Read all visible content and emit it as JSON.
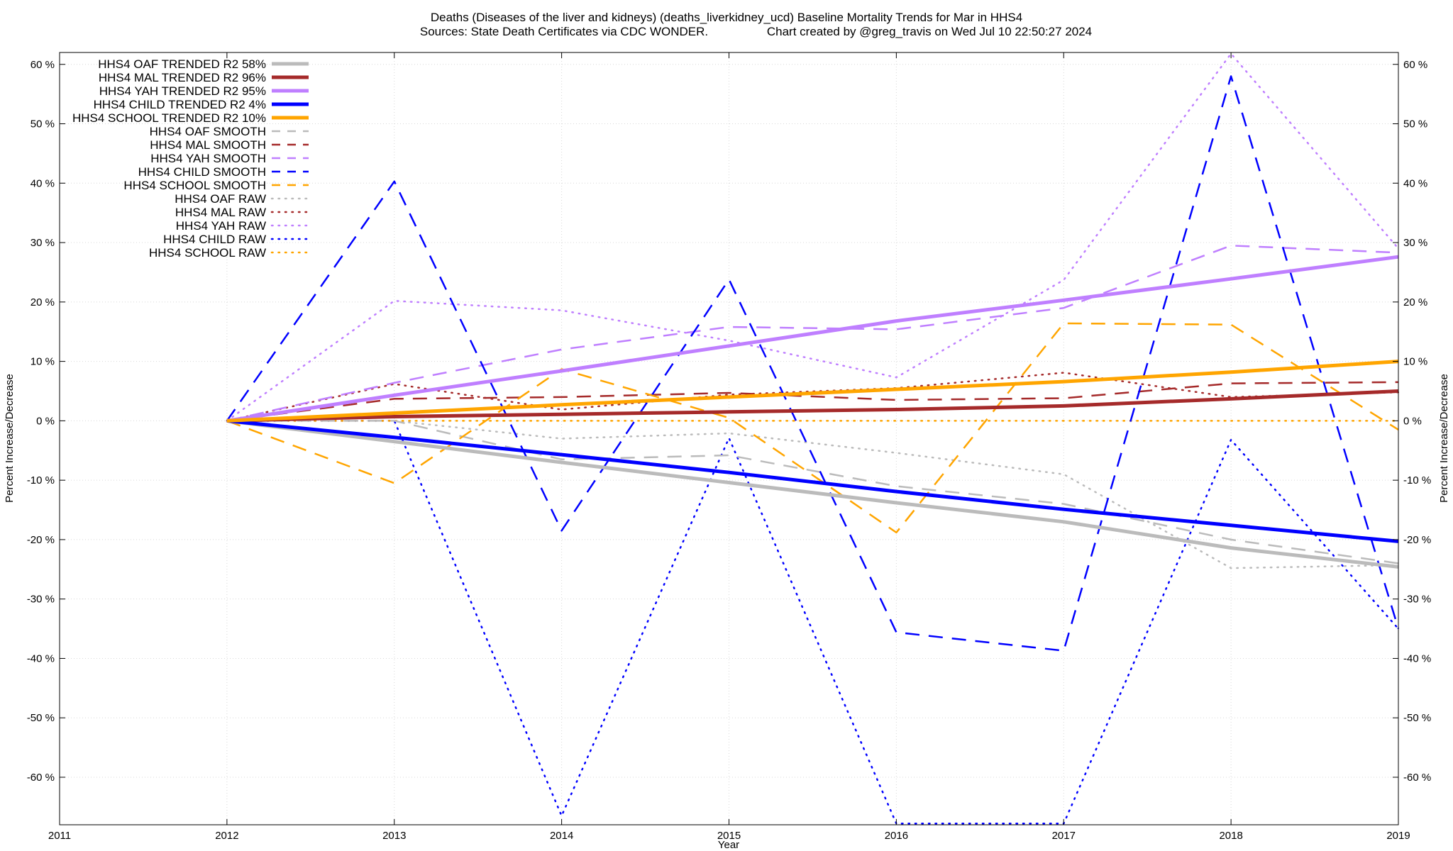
{
  "chart_data": {
    "type": "line",
    "title_line1": "Deaths (Diseases of the liver and kidneys) (deaths_liverkidney_ucd)  Baseline Mortality Trends for Mar in HHS4",
    "title_line2_left": "Sources: State Death Certificates via CDC WONDER.",
    "title_line2_right": "Chart created by @greg_travis on Wed Jul 10 22:50:27 2024",
    "xlabel": "Year",
    "ylabel_left": "Percent Increase/Decrease",
    "ylabel_right": "Percent Increase/Decrease",
    "xlim": [
      2011,
      2019
    ],
    "ylim": [
      -68,
      62
    ],
    "x_ticks": [
      2011,
      2012,
      2013,
      2014,
      2015,
      2016,
      2017,
      2018,
      2019
    ],
    "x_tick_labels": [
      "2011",
      "2012",
      "2013",
      "2014",
      "2015",
      "2016",
      "2017",
      "2018",
      "2019"
    ],
    "y_ticks": [
      60,
      50,
      40,
      30,
      20,
      10,
      0,
      -10,
      -20,
      -30,
      -40,
      -50,
      -60
    ],
    "y_tick_labels": [
      "60 %",
      "50 %",
      "40 %",
      "30 %",
      "20 %",
      "10 %",
      "0 %",
      "-10 %",
      "-20 %",
      "-30 %",
      "-40 %",
      "-50 %",
      "-60 %"
    ],
    "grid": true,
    "legend_position": "top-left",
    "colors": {
      "oaf": "#bbbbbb",
      "mal": "#a52a2a",
      "yah": "#bf7fff",
      "child": "#0000ff",
      "school": "#ffa500"
    },
    "series": [
      {
        "name": "HHS4 OAF TRENDED R2  58%",
        "style": "trended",
        "color_key": "oaf",
        "x": [
          2012,
          2013,
          2014,
          2015,
          2016,
          2017,
          2018,
          2019
        ],
        "values": [
          0,
          -3.5,
          -7,
          -10.4,
          -13.8,
          -17,
          -21.4,
          -24.6
        ]
      },
      {
        "name": "HHS4 MAL TRENDED R2  96%",
        "style": "trended",
        "color_key": "mal",
        "x": [
          2012,
          2013,
          2014,
          2015,
          2016,
          2017,
          2018,
          2019
        ],
        "values": [
          0,
          0.7,
          1.1,
          1.5,
          1.9,
          2.5,
          3.7,
          5
        ]
      },
      {
        "name": "HHS4 YAH TRENDED R2  95%",
        "style": "trended",
        "color_key": "yah",
        "x": [
          2012,
          2013,
          2014,
          2015,
          2016,
          2017,
          2018,
          2019
        ],
        "values": [
          0,
          4.3,
          8.4,
          12.6,
          16.8,
          20.3,
          23.9,
          27.6
        ]
      },
      {
        "name": "HHS4 CHILD TRENDED R2   4%",
        "style": "trended",
        "color_key": "child",
        "x": [
          2012,
          2013,
          2014,
          2015,
          2016,
          2017,
          2018,
          2019
        ],
        "values": [
          0,
          -2.8,
          -5.7,
          -8.7,
          -11.9,
          -14.9,
          -17.6,
          -20.3
        ]
      },
      {
        "name": "HHS4 SCHOOL TRENDED R2  10%",
        "style": "trended",
        "color_key": "school",
        "x": [
          2012,
          2013,
          2014,
          2015,
          2016,
          2017,
          2018,
          2019
        ],
        "values": [
          0,
          1.3,
          2.7,
          4,
          5.3,
          6.6,
          8.2,
          10
        ]
      },
      {
        "name": "HHS4 OAF SMOOTH",
        "style": "smooth",
        "color_key": "oaf",
        "x": [
          2012,
          2013,
          2014,
          2015,
          2016,
          2017,
          2018,
          2019
        ],
        "values": [
          0,
          0,
          -6.5,
          -5.8,
          -11,
          -14,
          -20,
          -24
        ]
      },
      {
        "name": "HHS4 MAL SMOOTH",
        "style": "smooth",
        "color_key": "mal",
        "x": [
          2012,
          2013,
          2014,
          2015,
          2016,
          2017,
          2018,
          2019
        ],
        "values": [
          0,
          3.7,
          4,
          4.7,
          3.5,
          3.8,
          6.3,
          6.5
        ]
      },
      {
        "name": "HHS4 YAH SMOOTH",
        "style": "smooth",
        "color_key": "yah",
        "x": [
          2012,
          2013,
          2014,
          2015,
          2016,
          2017,
          2018,
          2019
        ],
        "values": [
          0,
          6.4,
          12,
          15.8,
          15.4,
          19,
          29.5,
          28.3
        ]
      },
      {
        "name": "HHS4 CHILD SMOOTH",
        "style": "smooth",
        "color_key": "child",
        "x": [
          2012,
          2013,
          2014,
          2015,
          2016,
          2017,
          2018,
          2019
        ],
        "values": [
          0,
          40.3,
          -18.5,
          23.8,
          -35.6,
          -38.7,
          58,
          -35
        ]
      },
      {
        "name": "HHS4 SCHOOL SMOOTH",
        "style": "smooth",
        "color_key": "school",
        "x": [
          2012,
          2013,
          2014,
          2015,
          2016,
          2017,
          2018,
          2019
        ],
        "values": [
          0,
          -10.5,
          8.7,
          0.5,
          -18.8,
          16.4,
          16.2,
          -1.5
        ]
      },
      {
        "name": "HHS4 OAF RAW",
        "style": "raw",
        "color_key": "oaf",
        "x": [
          2012,
          2013,
          2014,
          2015,
          2016,
          2017,
          2018,
          2019
        ],
        "values": [
          0,
          0,
          -3,
          -2.1,
          -5.4,
          -9,
          -24.8,
          -24.3
        ]
      },
      {
        "name": "HHS4 MAL RAW",
        "style": "raw",
        "color_key": "mal",
        "x": [
          2012,
          2013,
          2014,
          2015,
          2016,
          2017,
          2018,
          2019
        ],
        "values": [
          0,
          6.2,
          1.9,
          4.4,
          5.5,
          8.1,
          4,
          4.8
        ]
      },
      {
        "name": "HHS4 YAH RAW",
        "style": "raw",
        "color_key": "yah",
        "x": [
          2012,
          2013,
          2014,
          2015,
          2016,
          2017,
          2018,
          2019
        ],
        "values": [
          0,
          20.2,
          18.6,
          13.5,
          7.3,
          23.7,
          61.8,
          29
        ]
      },
      {
        "name": "HHS4 CHILD RAW",
        "style": "raw",
        "color_key": "child",
        "x": [
          2012,
          2013,
          2014,
          2015,
          2016,
          2017,
          2018,
          2019
        ],
        "values": [
          0,
          0,
          -66.5,
          -2.9,
          -67.8,
          -67.8,
          -3.2,
          -35
        ]
      },
      {
        "name": "HHS4 SCHOOL RAW",
        "style": "raw",
        "color_key": "school",
        "x": [
          2012,
          2013,
          2014,
          2015,
          2016,
          2017,
          2018,
          2019
        ],
        "values": [
          0,
          0,
          0,
          0,
          0,
          0,
          0,
          0
        ]
      }
    ]
  }
}
